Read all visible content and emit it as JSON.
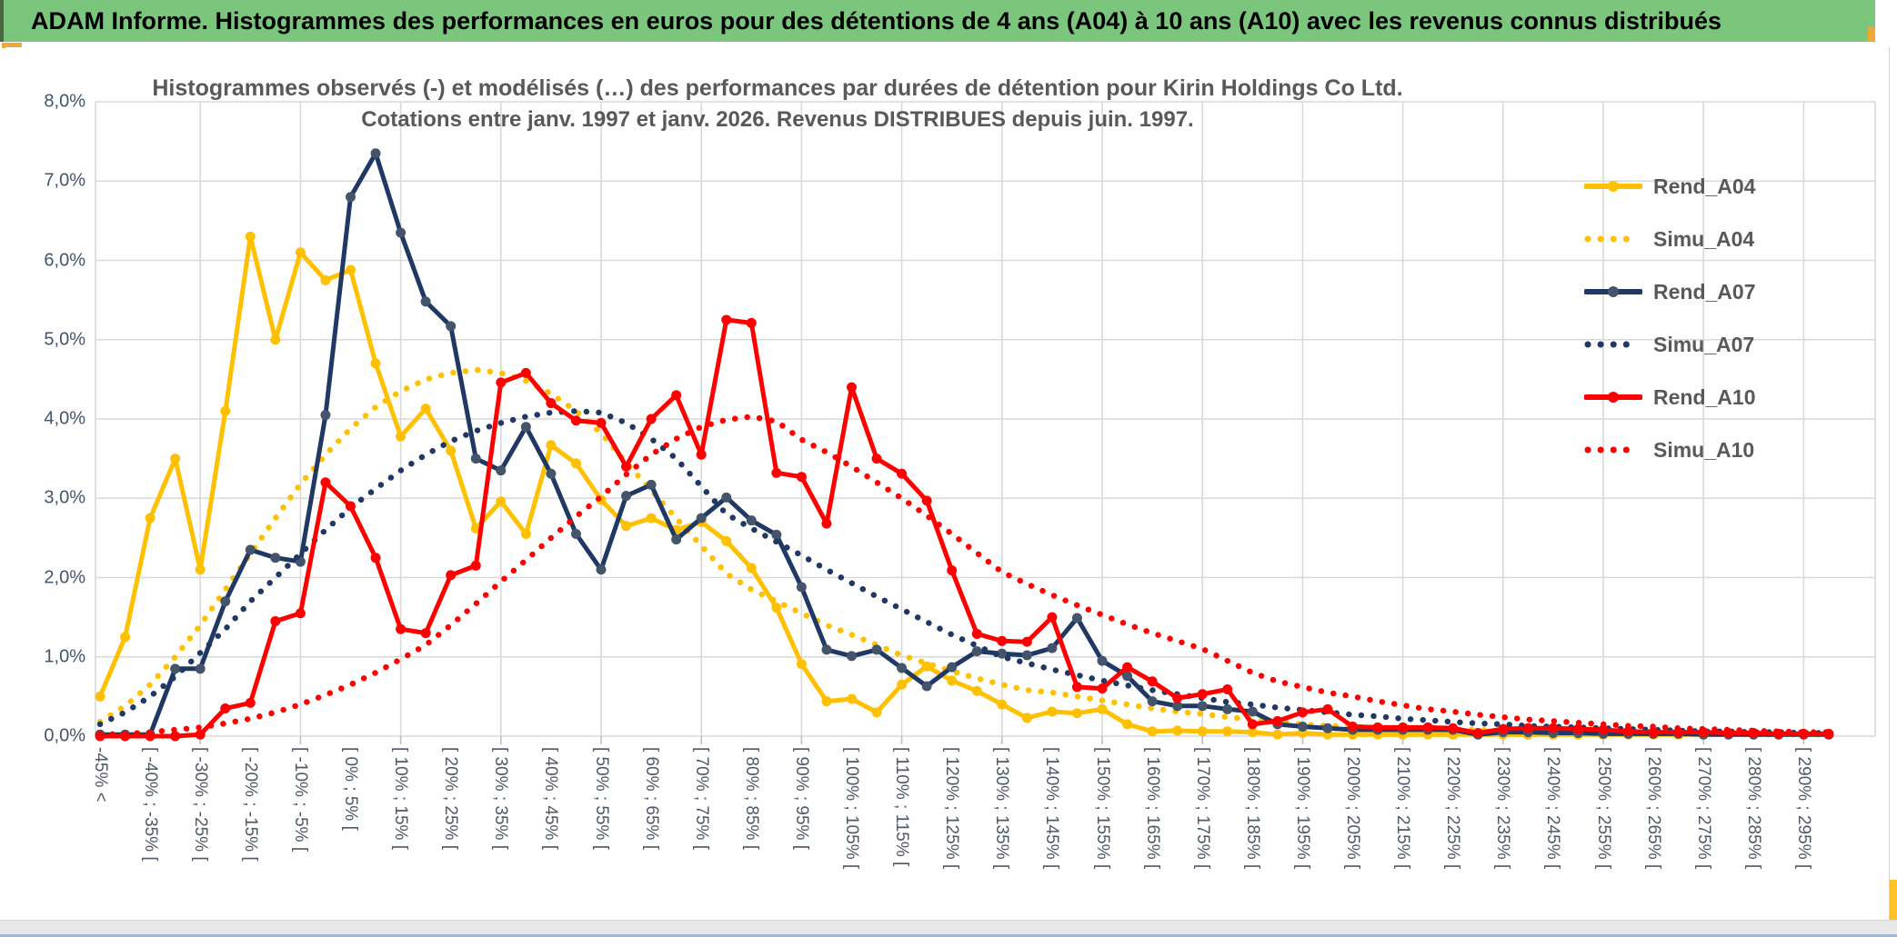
{
  "window": {
    "header_title": "ADAM Informe. Histogrammes des performances en euros pour des détentions de 4 ans (A04) à 10 ans (A10) avec les revenus connus distribués"
  },
  "colors": {
    "header_green": "#7CC57D",
    "accent_orange": "#EFA735",
    "accent_yellow": "#FFC226",
    "grid": "#D9D9D9",
    "axis_text": "#44546A",
    "title_gray": "#595959",
    "gold": "#FFC000",
    "navy": "#1F3864",
    "navy_marker": "#44546A",
    "red": "#FF0000"
  },
  "chart_data": {
    "type": "line",
    "title_line1": "Histogrammes observés (-) et modélisés (…) des performances par durées de détention pour Kirin Holdings Co Ltd.",
    "title_line2": "Cotations entre janv. 1997 et janv. 2026. Revenus DISTRIBUES depuis juin. 1997.",
    "ylim": [
      0,
      8
    ],
    "y_ticks": [
      "8,0%",
      "7,0%",
      "6,0%",
      "5,0%",
      "4,0%",
      "3,0%",
      "2,0%",
      "1,0%",
      "0,0%"
    ],
    "grid": true,
    "legend_position": "right-upper",
    "categories": [
      "-45% <",
      "",
      "[ -40% ; -35% [",
      "",
      "[ -30% ; -25% [",
      "",
      "[ -20% ; -15% [",
      "",
      "[ -10% ; -5% [",
      "",
      "[ 0% ; 5% [",
      "",
      "[ 10% ; 15% [",
      "",
      "[ 20% ; 25% [",
      "",
      "[ 30% ; 35% [",
      "",
      "[ 40% ; 45% [",
      "",
      "[ 50% ; 55% [",
      "",
      "[ 60% ; 65% [",
      "",
      "[ 70% ; 75% [",
      "",
      "[ 80% ; 85% [",
      "",
      "[ 90% ; 95% [",
      "",
      "[ 100% ; 105% [",
      "",
      "[ 110% ; 115% [",
      "",
      "[ 120% ; 125% [",
      "",
      "[ 130% ; 135% [",
      "",
      "[ 140% ; 145% [",
      "",
      "[ 150% ; 155% [",
      "",
      "[ 160% ; 165% [",
      "",
      "[ 170% ; 175% [",
      "",
      "[ 180% ; 185% [",
      "",
      "[ 190% ; 195% [",
      "",
      "[ 200% ; 205% [",
      "",
      "[ 210% ; 215% [",
      "",
      "[ 220% ; 225% [",
      "",
      "[ 230% ; 235% [",
      "",
      "[ 240% ; 245% [",
      "",
      "[ 250% ; 255% [",
      "",
      "[ 260% ; 265% [",
      "",
      "[ 270% ; 275% [",
      "",
      "[ 280% ; 285% [",
      "",
      "[ 290% ; 295% [",
      ""
    ],
    "series": [
      {
        "name": "Rend_A04",
        "style": "solid",
        "color": "#FFC000",
        "marker_color": "#FFC000",
        "values": [
          0.5,
          1.25,
          2.75,
          3.5,
          2.1,
          4.1,
          6.3,
          5.0,
          6.1,
          5.75,
          5.88,
          4.7,
          3.78,
          4.13,
          3.6,
          2.62,
          2.96,
          2.55,
          3.67,
          3.44,
          2.98,
          2.65,
          2.75,
          2.6,
          2.7,
          2.46,
          2.12,
          1.62,
          0.91,
          0.44,
          0.47,
          0.3,
          0.65,
          0.88,
          0.7,
          0.57,
          0.4,
          0.23,
          0.31,
          0.29,
          0.34,
          0.15,
          0.06,
          0.07,
          0.06,
          0.06,
          0.05,
          0.02,
          0.04,
          0.02,
          0.02,
          0.02,
          0.02,
          0.02,
          0.02,
          0.02,
          0.02,
          0.02,
          0.02,
          0.02,
          0.02,
          0.02,
          0.02,
          0.02,
          0.02,
          0.02,
          0.02,
          0.02,
          0.02,
          0.02
        ]
      },
      {
        "name": "Simu_A04",
        "style": "dotted",
        "color": "#FFC000",
        "values": [
          0.18,
          0.38,
          0.65,
          1.0,
          1.4,
          1.85,
          2.3,
          2.75,
          3.18,
          3.55,
          3.88,
          4.15,
          4.35,
          4.5,
          4.58,
          4.62,
          4.58,
          4.48,
          4.32,
          4.1,
          3.82,
          3.45,
          3.1,
          2.75,
          2.4,
          2.05,
          1.85,
          1.7,
          1.55,
          1.4,
          1.28,
          1.15,
          1.02,
          0.92,
          0.82,
          0.73,
          0.65,
          0.58,
          0.55,
          0.5,
          0.45,
          0.4,
          0.35,
          0.31,
          0.28,
          0.24,
          0.21,
          0.18,
          0.15,
          0.13,
          0.12,
          0.11,
          0.1,
          0.09,
          0.08,
          0.08,
          0.07,
          0.06,
          0.06,
          0.05,
          0.05,
          0.04,
          0.04,
          0.03,
          0.03,
          0.03,
          0.02,
          0.02,
          0.02,
          0.02
        ]
      },
      {
        "name": "Rend_A07",
        "style": "solid",
        "color": "#1F3864",
        "marker_color": "#44546A",
        "values": [
          0.02,
          0.02,
          0.02,
          0.85,
          0.85,
          1.7,
          2.35,
          2.25,
          2.2,
          4.05,
          6.8,
          7.35,
          6.35,
          5.48,
          5.17,
          3.5,
          3.35,
          3.9,
          3.31,
          2.55,
          2.1,
          3.03,
          3.17,
          2.48,
          2.75,
          3.01,
          2.72,
          2.54,
          1.88,
          1.09,
          1.01,
          1.09,
          0.86,
          0.63,
          0.87,
          1.07,
          1.04,
          1.02,
          1.11,
          1.49,
          0.95,
          0.76,
          0.44,
          0.38,
          0.38,
          0.34,
          0.31,
          0.15,
          0.12,
          0.1,
          0.08,
          0.08,
          0.08,
          0.08,
          0.08,
          0.02,
          0.05,
          0.05,
          0.04,
          0.04,
          0.03,
          0.03,
          0.03,
          0.03,
          0.02,
          0.02,
          0.02,
          0.02,
          0.02,
          0.02
        ]
      },
      {
        "name": "Simu_A07",
        "style": "dotted",
        "color": "#1F3864",
        "values": [
          0.15,
          0.3,
          0.5,
          0.75,
          1.05,
          1.35,
          1.7,
          2.0,
          2.3,
          2.6,
          2.88,
          3.12,
          3.35,
          3.55,
          3.72,
          3.85,
          3.95,
          4.03,
          4.08,
          4.1,
          4.08,
          3.95,
          3.75,
          3.5,
          3.15,
          2.8,
          2.62,
          2.45,
          2.28,
          2.1,
          1.93,
          1.76,
          1.6,
          1.44,
          1.28,
          1.14,
          1.0,
          0.92,
          0.84,
          0.77,
          0.7,
          0.64,
          0.58,
          0.53,
          0.48,
          0.43,
          0.4,
          0.36,
          0.33,
          0.3,
          0.27,
          0.25,
          0.22,
          0.2,
          0.18,
          0.16,
          0.15,
          0.13,
          0.12,
          0.11,
          0.1,
          0.09,
          0.08,
          0.07,
          0.06,
          0.06,
          0.05,
          0.05,
          0.04,
          0.04
        ]
      },
      {
        "name": "Rend_A10",
        "style": "solid",
        "color": "#FF0000",
        "marker_color": "#FF0000",
        "values": [
          0.0,
          0.0,
          0.0,
          0.0,
          0.02,
          0.35,
          0.42,
          1.45,
          1.55,
          3.2,
          2.9,
          2.25,
          1.35,
          1.3,
          2.03,
          2.15,
          4.46,
          4.58,
          4.2,
          3.98,
          3.95,
          3.4,
          4.0,
          4.3,
          3.55,
          5.25,
          5.21,
          3.32,
          3.27,
          2.68,
          4.4,
          3.5,
          3.31,
          2.97,
          2.09,
          1.29,
          1.2,
          1.19,
          1.5,
          0.62,
          0.6,
          0.87,
          0.69,
          0.48,
          0.53,
          0.59,
          0.15,
          0.19,
          0.3,
          0.34,
          0.12,
          0.11,
          0.11,
          0.11,
          0.1,
          0.04,
          0.09,
          0.1,
          0.1,
          0.09,
          0.08,
          0.06,
          0.05,
          0.05,
          0.05,
          0.04,
          0.04,
          0.03,
          0.03,
          0.03
        ]
      },
      {
        "name": "Simu_A10",
        "style": "dotted",
        "color": "#FF0000",
        "values": [
          0.02,
          0.03,
          0.05,
          0.08,
          0.11,
          0.16,
          0.22,
          0.3,
          0.4,
          0.52,
          0.65,
          0.8,
          0.97,
          1.15,
          1.4,
          1.67,
          1.95,
          2.22,
          2.5,
          2.77,
          3.02,
          3.3,
          3.55,
          3.75,
          3.9,
          3.99,
          4.03,
          3.97,
          3.74,
          3.58,
          3.4,
          3.2,
          3.0,
          2.78,
          2.55,
          2.31,
          2.07,
          1.92,
          1.78,
          1.65,
          1.53,
          1.41,
          1.3,
          1.2,
          1.1,
          0.95,
          0.8,
          0.69,
          0.62,
          0.55,
          0.5,
          0.44,
          0.39,
          0.34,
          0.31,
          0.27,
          0.24,
          0.21,
          0.19,
          0.17,
          0.15,
          0.13,
          0.12,
          0.1,
          0.09,
          0.08,
          0.07,
          0.06,
          0.05,
          0.05
        ]
      }
    ]
  }
}
